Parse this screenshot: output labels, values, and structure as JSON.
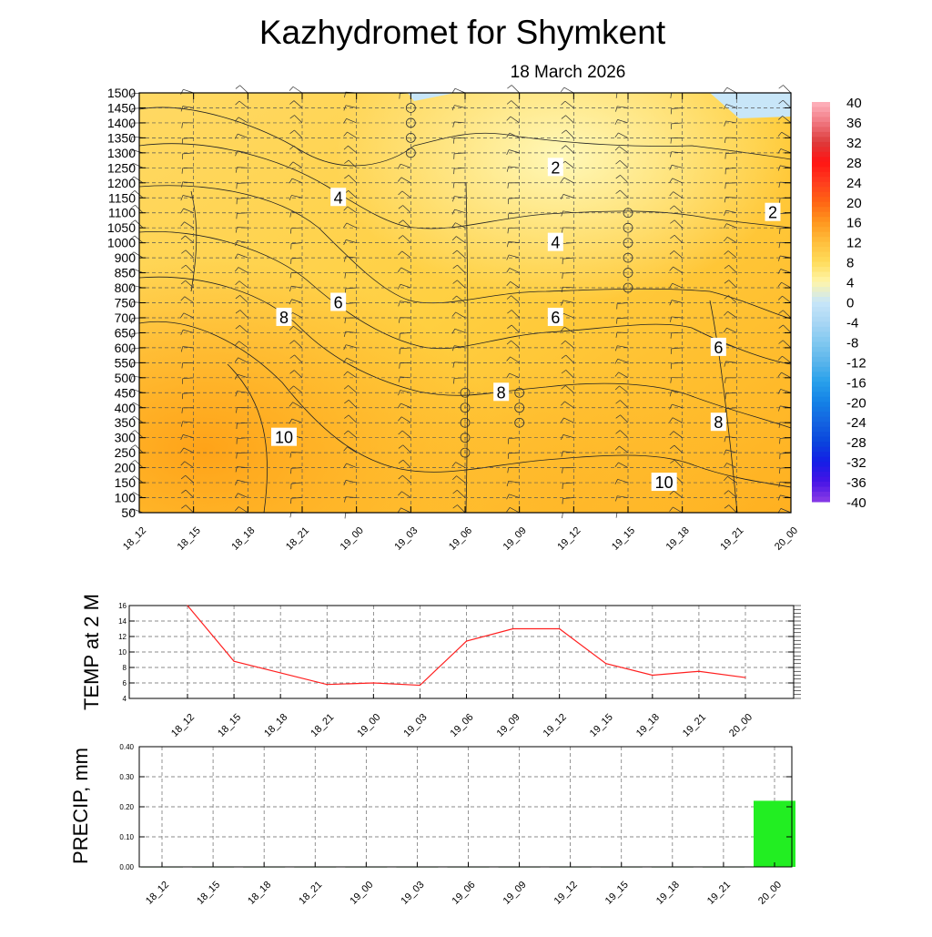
{
  "title": "Kazhydromet  for Shymkent",
  "subtitle": "18 March 2026",
  "times": [
    "18_12",
    "18_15",
    "18_18",
    "18_21",
    "19_00",
    "19_03",
    "19_06",
    "19_09",
    "19_12",
    "19_15",
    "19_18",
    "19_21",
    "20_00"
  ],
  "colors": {
    "temp_line": "#ff2020",
    "precip_bar": "#22ee22",
    "contour_line": "#222222",
    "grid": "#555555"
  },
  "chart_data": [
    {
      "type": "heatmap",
      "name": "cross-section",
      "title": "Kazhydromet  for Shymkent",
      "subtitle": "18 March 2026",
      "x_categories": [
        "18_12",
        "18_15",
        "18_18",
        "18_21",
        "19_00",
        "19_03",
        "19_06",
        "19_09",
        "19_12",
        "19_15",
        "19_18",
        "19_21",
        "20_00"
      ],
      "y_ticks": [
        50,
        100,
        150,
        200,
        250,
        300,
        350,
        400,
        450,
        500,
        550,
        600,
        650,
        700,
        750,
        800,
        850,
        900,
        1000,
        1050,
        1100,
        1150,
        1200,
        1250,
        1300,
        1350,
        1400,
        1450,
        1500
      ],
      "contour_labels": [
        {
          "label": "2",
          "time": "19_12",
          "level": 1250
        },
        {
          "label": "2",
          "time": "20_00",
          "level": 1100
        },
        {
          "label": "4",
          "time": "19_00",
          "level": 1150
        },
        {
          "label": "4",
          "time": "19_12",
          "level": 1000
        },
        {
          "label": "6",
          "time": "19_00",
          "level": 750
        },
        {
          "label": "6",
          "time": "19_12",
          "level": 700
        },
        {
          "label": "6",
          "time": "19_21",
          "level": 600
        },
        {
          "label": "8",
          "time": "18_21",
          "level": 700
        },
        {
          "label": "8",
          "time": "19_09",
          "level": 450
        },
        {
          "label": "8",
          "time": "19_21",
          "level": 350
        },
        {
          "label": "10",
          "time": "18_21",
          "level": 300
        },
        {
          "label": "10",
          "time": "19_18",
          "level": 150
        }
      ],
      "colorbar": {
        "labels": [
          "40",
          "36",
          "32",
          "28",
          "24",
          "20",
          "16",
          "12",
          "8",
          "4",
          "0",
          "-4",
          "-8",
          "-12",
          "-16",
          "-20",
          "-24",
          "-28",
          "-32",
          "-36",
          "-40"
        ]
      }
    },
    {
      "type": "line",
      "name": "temperature",
      "ylabel": "TEMP at 2 M",
      "x": [
        "18_12",
        "18_15",
        "18_18",
        "18_21",
        "19_00",
        "19_03",
        "19_06",
        "19_09",
        "19_12",
        "19_15",
        "19_18",
        "19_21",
        "20_00"
      ],
      "values": [
        16.0,
        8.8,
        7.3,
        5.8,
        6.0,
        5.7,
        11.4,
        13.0,
        13.0,
        8.5,
        7.0,
        7.5,
        6.7
      ],
      "ylim": [
        4,
        16
      ],
      "yticks": [
        "4",
        "6",
        "8",
        "10",
        "12",
        "14",
        "16"
      ]
    },
    {
      "type": "bar",
      "name": "precipitation",
      "ylabel": "PRECIP, mm",
      "categories": [
        "18_12",
        "18_15",
        "18_18",
        "18_21",
        "19_00",
        "19_03",
        "19_06",
        "19_09",
        "19_12",
        "19_15",
        "19_18",
        "19_21",
        "20_00"
      ],
      "values": [
        0,
        0,
        0,
        0,
        0,
        0,
        0,
        0,
        0,
        0,
        0,
        0,
        0.22
      ],
      "ylim": [
        0,
        0.4
      ],
      "yticks": [
        "0.00",
        "0.10",
        "0.20",
        "0.30",
        "0.40"
      ]
    }
  ]
}
